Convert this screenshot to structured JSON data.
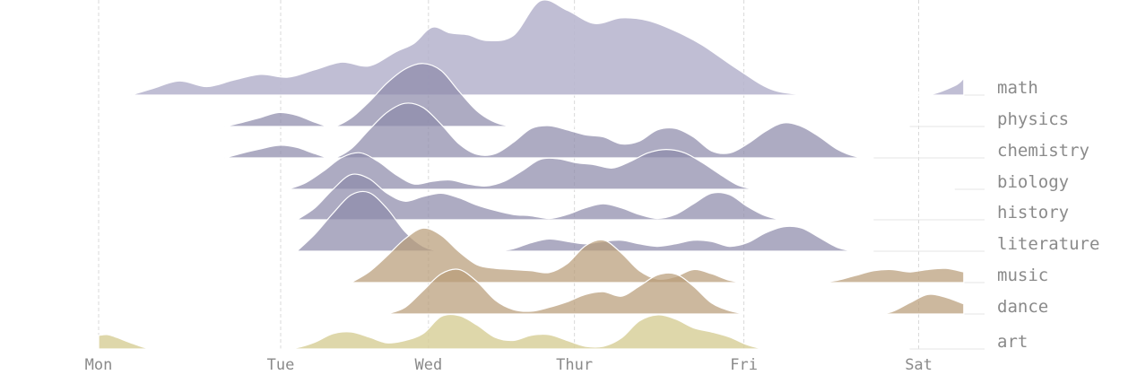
{
  "chart_data": {
    "type": "ridgeline",
    "x_ticks": [
      "Mon",
      "Tue",
      "Wed",
      "Thur",
      "Fri",
      "Sat"
    ],
    "xlim": [
      0,
      4.85
    ],
    "colors": {
      "science": "#8d8aab",
      "science_top": "#b5b3cc",
      "arts": "#b89c78",
      "art": "#d6cd95"
    },
    "series": [
      {
        "name": "math",
        "color_group": "science_top",
        "x": [
          0.18,
          0.3,
          0.45,
          0.6,
          0.75,
          0.9,
          1.05,
          1.2,
          1.35,
          1.5,
          1.65,
          1.75,
          1.85,
          1.95,
          2.05,
          2.15,
          2.3,
          2.45,
          2.6,
          2.75,
          2.9,
          3.05,
          3.2,
          3.35,
          3.55,
          3.75,
          4.0,
          4.2,
          4.4,
          4.6,
          4.75,
          4.8
        ],
        "y": [
          0.0,
          0.07,
          0.15,
          0.09,
          0.16,
          0.22,
          0.19,
          0.27,
          0.35,
          0.31,
          0.46,
          0.55,
          0.72,
          0.66,
          0.64,
          0.58,
          0.63,
          1.0,
          0.9,
          0.76,
          0.82,
          0.79,
          0.68,
          0.53,
          0.27,
          0.05,
          0.0,
          0.0,
          0.0,
          0.0,
          0.1,
          0.18
        ]
      },
      {
        "name": "physics",
        "color_group": "science",
        "x": [
          0.7,
          0.8,
          0.9,
          1.0,
          1.1,
          1.2,
          1.3,
          1.4,
          1.5,
          1.6,
          1.7,
          1.8,
          1.9,
          2.0,
          2.1,
          2.2,
          2.3,
          2.4,
          2.55,
          2.7,
          2.9,
          3.2,
          3.6,
          4.0,
          4.5
        ],
        "y": [
          0.0,
          0.06,
          0.13,
          0.2,
          0.16,
          0.06,
          0.0,
          0.12,
          0.35,
          0.62,
          0.82,
          0.9,
          0.8,
          0.5,
          0.22,
          0.06,
          0.0,
          0.0,
          0.0,
          0.0,
          0.0,
          0.0,
          0.0,
          0.0,
          0.0
        ]
      },
      {
        "name": "chemistry",
        "color_group": "science",
        "x": [
          0.7,
          0.8,
          0.9,
          1.0,
          1.1,
          1.2,
          1.3,
          1.4,
          1.5,
          1.6,
          1.7,
          1.8,
          1.9,
          2.0,
          2.1,
          2.2,
          2.3,
          2.4,
          2.5,
          2.6,
          2.7,
          2.8,
          2.9,
          3.0,
          3.1,
          3.2,
          3.3,
          3.4,
          3.5,
          3.6,
          3.7,
          3.8,
          3.9,
          4.0,
          4.1,
          4.2,
          4.3
        ],
        "y": [
          0.0,
          0.07,
          0.13,
          0.18,
          0.15,
          0.06,
          0.0,
          0.13,
          0.4,
          0.65,
          0.78,
          0.72,
          0.48,
          0.2,
          0.05,
          0.06,
          0.22,
          0.42,
          0.46,
          0.4,
          0.33,
          0.3,
          0.2,
          0.24,
          0.4,
          0.42,
          0.3,
          0.1,
          0.07,
          0.2,
          0.38,
          0.5,
          0.45,
          0.3,
          0.12,
          0.02,
          0.0
        ]
      },
      {
        "name": "biology",
        "color_group": "science",
        "x": [
          1.05,
          1.15,
          1.25,
          1.35,
          1.45,
          1.55,
          1.65,
          1.75,
          1.85,
          1.95,
          2.05,
          2.15,
          2.25,
          2.35,
          2.45,
          2.55,
          2.65,
          2.75,
          2.85,
          2.95,
          3.05,
          3.15,
          3.25,
          3.35,
          3.45,
          3.55,
          3.65,
          3.75,
          3.85,
          3.95,
          4.05,
          4.15,
          4.25,
          4.35,
          4.45,
          4.55,
          4.65,
          4.75
        ],
        "y": [
          0.0,
          0.1,
          0.28,
          0.48,
          0.55,
          0.42,
          0.22,
          0.08,
          0.12,
          0.14,
          0.08,
          0.05,
          0.12,
          0.28,
          0.45,
          0.46,
          0.4,
          0.37,
          0.32,
          0.42,
          0.55,
          0.6,
          0.55,
          0.4,
          0.22,
          0.06,
          0.0,
          0.0,
          0.0,
          0.0,
          0.0,
          0.0,
          0.0,
          0.0,
          0.0,
          0.0,
          0.0,
          0.0
        ]
      },
      {
        "name": "history",
        "color_group": "science",
        "x": [
          1.1,
          1.2,
          1.3,
          1.4,
          1.5,
          1.6,
          1.7,
          1.8,
          1.9,
          2.0,
          2.1,
          2.2,
          2.3,
          2.4,
          2.5,
          2.6,
          2.7,
          2.8,
          2.9,
          3.0,
          3.1,
          3.2,
          3.3,
          3.4,
          3.5,
          3.6,
          3.7,
          3.8,
          3.9,
          4.0,
          4.1,
          4.2,
          4.3
        ],
        "y": [
          0.0,
          0.18,
          0.46,
          0.68,
          0.62,
          0.4,
          0.28,
          0.35,
          0.4,
          0.33,
          0.22,
          0.14,
          0.08,
          0.06,
          0.02,
          0.08,
          0.18,
          0.24,
          0.18,
          0.08,
          0.02,
          0.08,
          0.24,
          0.4,
          0.38,
          0.2,
          0.06,
          0.0,
          0.0,
          0.0,
          0.0,
          0.0,
          0.0
        ]
      },
      {
        "name": "literature",
        "color_group": "science",
        "x": [
          1.1,
          1.2,
          1.3,
          1.4,
          1.5,
          1.6,
          1.7,
          1.8,
          1.9,
          2.0,
          2.1,
          2.2,
          2.3,
          2.4,
          2.5,
          2.6,
          2.7,
          2.8,
          2.9,
          3.0,
          3.1,
          3.2,
          3.3,
          3.4,
          3.5,
          3.6,
          3.7,
          3.8,
          3.9,
          4.0,
          4.1,
          4.2,
          4.3
        ],
        "y": [
          0.0,
          0.28,
          0.62,
          0.92,
          0.96,
          0.7,
          0.32,
          0.08,
          0.0,
          0.0,
          0.0,
          0.0,
          0.04,
          0.14,
          0.2,
          0.16,
          0.12,
          0.16,
          0.18,
          0.12,
          0.08,
          0.12,
          0.18,
          0.16,
          0.08,
          0.14,
          0.3,
          0.4,
          0.38,
          0.22,
          0.06,
          0.0,
          0.0
        ]
      },
      {
        "name": "music",
        "color_group": "arts",
        "x": [
          1.4,
          1.5,
          1.6,
          1.7,
          1.8,
          1.9,
          2.0,
          2.1,
          2.2,
          2.3,
          2.4,
          2.5,
          2.6,
          2.7,
          2.8,
          2.9,
          3.0,
          3.1,
          3.2,
          3.3,
          3.4,
          3.5,
          3.6,
          3.7,
          3.8,
          3.9,
          4.0,
          4.1,
          4.2,
          4.3,
          4.4,
          4.5,
          4.6,
          4.7,
          4.8
        ],
        "y": [
          0.0,
          0.18,
          0.45,
          0.74,
          0.92,
          0.8,
          0.52,
          0.3,
          0.24,
          0.22,
          0.2,
          0.17,
          0.32,
          0.62,
          0.72,
          0.5,
          0.2,
          0.06,
          0.1,
          0.22,
          0.15,
          0.04,
          0.0,
          0.0,
          0.0,
          0.0,
          0.0,
          0.04,
          0.12,
          0.2,
          0.22,
          0.18,
          0.22,
          0.24,
          0.18
        ]
      },
      {
        "name": "dance",
        "color_group": "arts",
        "x": [
          1.6,
          1.7,
          1.8,
          1.9,
          2.0,
          2.1,
          2.2,
          2.3,
          2.4,
          2.5,
          2.6,
          2.7,
          2.8,
          2.9,
          3.0,
          3.1,
          3.2,
          3.3,
          3.4,
          3.5,
          3.6,
          3.7,
          3.8,
          3.9,
          4.0,
          4.1,
          4.2,
          4.3,
          4.4,
          4.5,
          4.6,
          4.7,
          4.8
        ],
        "y": [
          0.0,
          0.12,
          0.42,
          0.72,
          0.8,
          0.58,
          0.25,
          0.08,
          0.05,
          0.12,
          0.22,
          0.35,
          0.4,
          0.32,
          0.5,
          0.7,
          0.72,
          0.5,
          0.2,
          0.06,
          0.0,
          0.0,
          0.0,
          0.0,
          0.0,
          0.0,
          0.0,
          0.0,
          0.04,
          0.2,
          0.35,
          0.3,
          0.18
        ]
      },
      {
        "name": "art",
        "color_group": "art",
        "x": [
          0.0,
          0.05,
          0.1,
          0.2,
          0.3,
          0.5,
          0.7,
          0.9,
          1.0,
          1.1,
          1.2,
          1.3,
          1.4,
          1.5,
          1.6,
          1.7,
          1.8,
          1.9,
          2.0,
          2.1,
          2.2,
          2.3,
          2.4,
          2.5,
          2.6,
          2.7,
          2.8,
          2.9,
          3.0,
          3.1,
          3.2,
          3.3,
          3.4,
          3.5,
          3.6,
          3.7,
          3.8,
          4.0,
          4.5
        ],
        "y": [
          0.4,
          0.42,
          0.34,
          0.14,
          0.0,
          0.0,
          0.0,
          0.0,
          0.0,
          0.04,
          0.2,
          0.45,
          0.5,
          0.35,
          0.18,
          0.25,
          0.45,
          0.95,
          0.98,
          0.7,
          0.34,
          0.25,
          0.4,
          0.42,
          0.25,
          0.08,
          0.08,
          0.32,
          0.82,
          1.0,
          0.88,
          0.62,
          0.5,
          0.35,
          0.12,
          0.0,
          0.0,
          0.0,
          0.0
        ]
      }
    ]
  }
}
